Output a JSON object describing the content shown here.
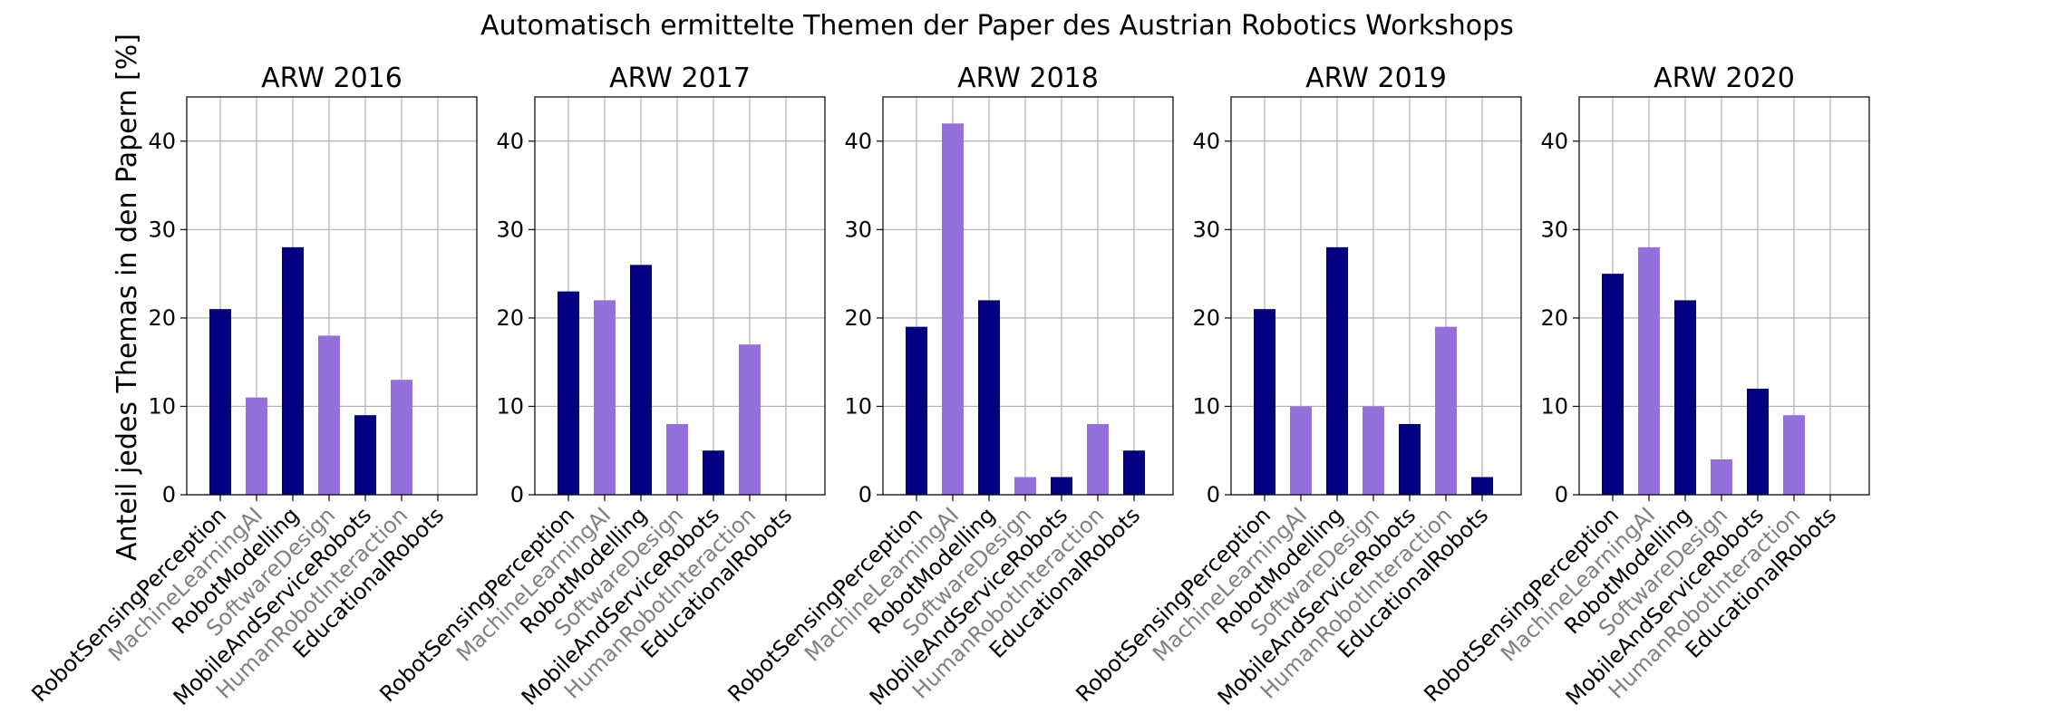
{
  "figure": {
    "title": "Automatisch ermittelte Themen der Paper des Austrian Robotics Workshops",
    "ylabel": "Anteil jedes Themas in den Papern [%]"
  },
  "colors": {
    "dark": "#000080",
    "light": "#9370db",
    "label_dark": "#000000",
    "label_light": "#808080",
    "grid": "#b0b0b0"
  },
  "chart_data": [
    {
      "type": "bar",
      "title": "ARW 2016",
      "categories": [
        "RobotSensingPerception",
        "MachineLearningAI",
        "RobotModelling",
        "SoftwareDesign",
        "MobileAndServiceRobots",
        "HumanRobotInteraction",
        "EducationalRobots"
      ],
      "values": [
        21,
        11,
        28,
        18,
        9,
        13,
        0
      ],
      "ylim": [
        0,
        45
      ],
      "yticks": [
        0,
        10,
        20,
        30,
        40
      ],
      "grid": true
    },
    {
      "type": "bar",
      "title": "ARW 2017",
      "categories": [
        "RobotSensingPerception",
        "MachineLearningAI",
        "RobotModelling",
        "SoftwareDesign",
        "MobileAndServiceRobots",
        "HumanRobotInteraction",
        "EducationalRobots"
      ],
      "values": [
        23,
        22,
        26,
        8,
        5,
        17,
        0
      ],
      "ylim": [
        0,
        45
      ],
      "yticks": [
        0,
        10,
        20,
        30,
        40
      ],
      "grid": true
    },
    {
      "type": "bar",
      "title": "ARW 2018",
      "categories": [
        "RobotSensingPerception",
        "MachineLearningAI",
        "RobotModelling",
        "SoftwareDesign",
        "MobileAndServiceRobots",
        "HumanRobotInteraction",
        "EducationalRobots"
      ],
      "values": [
        19,
        42,
        22,
        2,
        2,
        8,
        5
      ],
      "ylim": [
        0,
        45
      ],
      "yticks": [
        0,
        10,
        20,
        30,
        40
      ],
      "grid": true
    },
    {
      "type": "bar",
      "title": "ARW 2019",
      "categories": [
        "RobotSensingPerception",
        "MachineLearningAI",
        "RobotModelling",
        "SoftwareDesign",
        "MobileAndServiceRobots",
        "HumanRobotInteraction",
        "EducationalRobots"
      ],
      "values": [
        21,
        10,
        28,
        10,
        8,
        19,
        2
      ],
      "ylim": [
        0,
        45
      ],
      "yticks": [
        0,
        10,
        20,
        30,
        40
      ],
      "grid": true
    },
    {
      "type": "bar",
      "title": "ARW 2020",
      "categories": [
        "RobotSensingPerception",
        "MachineLearningAI",
        "RobotModelling",
        "SoftwareDesign",
        "MobileAndServiceRobots",
        "HumanRobotInteraction",
        "EducationalRobots"
      ],
      "values": [
        25,
        28,
        22,
        4,
        12,
        9,
        0
      ],
      "ylim": [
        0,
        45
      ],
      "yticks": [
        0,
        10,
        20,
        30,
        40
      ],
      "grid": true
    }
  ]
}
